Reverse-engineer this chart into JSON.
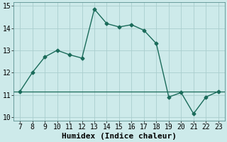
{
  "x": [
    7,
    8,
    9,
    10,
    11,
    12,
    13,
    14,
    15,
    16,
    17,
    18,
    19,
    20,
    21,
    22,
    23
  ],
  "y": [
    11.15,
    12.0,
    12.7,
    13.0,
    12.8,
    12.65,
    14.85,
    14.2,
    14.05,
    14.15,
    13.9,
    13.3,
    10.9,
    11.1,
    10.15,
    10.9,
    11.15
  ],
  "hline_y": 11.15,
  "line_color": "#1a6b5a",
  "bg_color": "#cdeaea",
  "grid_color": "#aacece",
  "xlabel": "Humidex (Indice chaleur)",
  "xlim": [
    6.5,
    23.5
  ],
  "ylim": [
    9.85,
    15.15
  ],
  "xticks": [
    7,
    8,
    9,
    10,
    11,
    12,
    13,
    14,
    15,
    16,
    17,
    18,
    19,
    20,
    21,
    22,
    23
  ],
  "yticks": [
    10,
    11,
    12,
    13,
    14,
    15
  ],
  "marker": "D",
  "markersize": 2.5,
  "linewidth": 1.0,
  "xlabel_fontsize": 8,
  "tick_fontsize": 7
}
